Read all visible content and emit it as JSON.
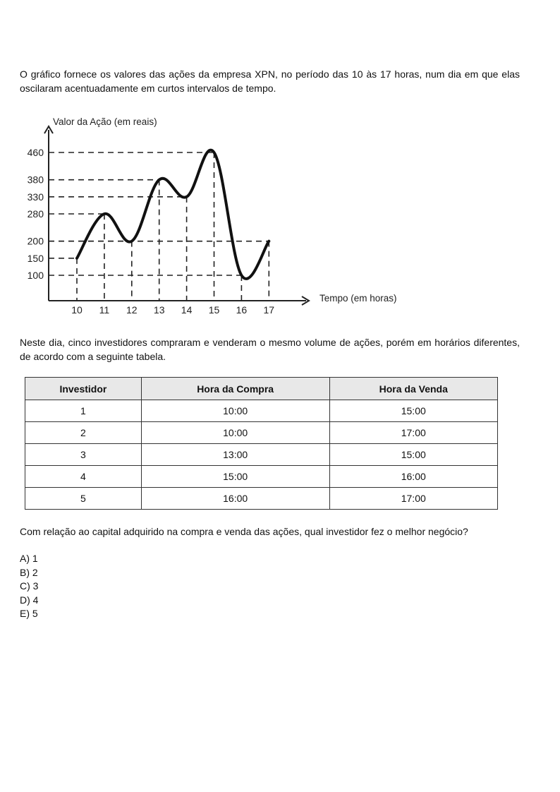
{
  "intro": "O gráfico fornece os valores das ações da empresa XPN, no período das 10 às 17 horas, num dia em que elas oscilaram acentuadamente em curtos intervalos de tempo.",
  "chart_data": {
    "type": "line",
    "xlabel": "Tempo (em horas)",
    "ylabel": "Valor da Ação (em reais)",
    "x": [
      10,
      11,
      12,
      13,
      14,
      15,
      16,
      17
    ],
    "y": [
      150,
      280,
      200,
      380,
      330,
      460,
      100,
      200
    ],
    "x_ticks": [
      "10",
      "11",
      "12",
      "13",
      "14",
      "15",
      "16",
      "17"
    ],
    "y_ticks": [
      100,
      150,
      200,
      280,
      330,
      380,
      460
    ],
    "y_tick_labels": [
      "100",
      "150",
      "200",
      "280",
      "330",
      "380",
      "460"
    ],
    "guide_lines": "dashed",
    "grid": false
  },
  "para2": "Neste dia, cinco investidores compraram e venderam o mesmo volume de ações, porém em horários diferentes, de acordo com a seguinte tabela.",
  "table": {
    "headers": [
      "Investidor",
      "Hora da Compra",
      "Hora da Venda"
    ],
    "rows": [
      [
        "1",
        "10:00",
        "15:00"
      ],
      [
        "2",
        "10:00",
        "17:00"
      ],
      [
        "3",
        "13:00",
        "15:00"
      ],
      [
        "4",
        "15:00",
        "16:00"
      ],
      [
        "5",
        "16:00",
        "17:00"
      ]
    ]
  },
  "question": "Com relação ao capital adquirido na compra e venda das ações, qual investidor fez o melhor negócio?",
  "options": [
    "A) 1",
    "B) 2",
    "C) 3",
    "D) 4",
    "E) 5"
  ]
}
